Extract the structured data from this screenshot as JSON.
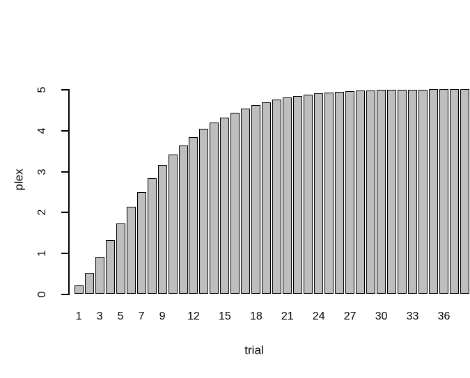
{
  "chart_data": {
    "type": "bar",
    "title": "",
    "xlabel": "trial",
    "ylabel": "plex",
    "trials": [
      1,
      2,
      3,
      4,
      5,
      6,
      7,
      8,
      9,
      10,
      11,
      12,
      13,
      14,
      15,
      16,
      17,
      18,
      19,
      20,
      21,
      22,
      23,
      24,
      25,
      26,
      27,
      28,
      29,
      30,
      31,
      32,
      33,
      34,
      35,
      36,
      37,
      38
    ],
    "values": [
      0.21,
      0.51,
      0.9,
      1.31,
      1.72,
      2.12,
      2.49,
      2.83,
      3.14,
      3.4,
      3.62,
      3.83,
      4.03,
      4.18,
      4.31,
      4.42,
      4.53,
      4.61,
      4.68,
      4.74,
      4.79,
      4.83,
      4.87,
      4.9,
      4.92,
      4.94,
      4.95,
      4.96,
      4.97,
      4.98,
      4.98,
      4.99,
      4.99,
      4.99,
      5.0,
      5.0,
      5.0,
      5.0
    ],
    "x_tick_trials": [
      1,
      3,
      5,
      7,
      9,
      12,
      15,
      18,
      21,
      24,
      27,
      30,
      33,
      36
    ],
    "x_tick_labels": [
      "1",
      "3",
      "5",
      "7",
      "9",
      "12",
      "15",
      "18",
      "21",
      "24",
      "27",
      "30",
      "33",
      "36"
    ],
    "y_ticks": [
      0,
      1,
      2,
      3,
      4,
      5
    ],
    "y_tick_labels": [
      "0",
      "1",
      "2",
      "3",
      "4",
      "5"
    ],
    "ylim": [
      0,
      5
    ],
    "grid": false,
    "legend": null,
    "bar_fill": "#BEBEBE",
    "bar_border": "#000000",
    "background": "#FFFFFF",
    "text_color": "#000000"
  }
}
